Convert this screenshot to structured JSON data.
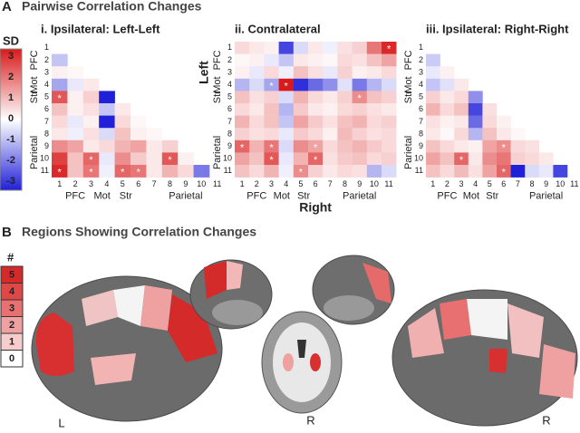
{
  "panel_a": {
    "label": "A",
    "title": "Pairwise Correlation Changes",
    "color_scale": {
      "title": "SD",
      "zlim": [
        -3,
        3
      ],
      "ticks": [
        3,
        2,
        1,
        0,
        -1,
        -2,
        -3
      ],
      "low_color": "#2020d8",
      "mid_color": "#ffffff",
      "high_color": "#d81a1a"
    },
    "tick_labels": [
      "1",
      "2",
      "3",
      "4",
      "5",
      "6",
      "7",
      "8",
      "9",
      "10",
      "11"
    ],
    "group_labels": [
      "PFC",
      "Mot",
      "Str",
      "Parietal"
    ],
    "star": "*",
    "heatmaps": [
      {
        "type": "heatmap",
        "title": "i. Ipsilateral: Left-Left",
        "values": [
          [
            null,
            null,
            null,
            null,
            null,
            null,
            null,
            null,
            null,
            null,
            null
          ],
          [
            -0.8,
            null,
            null,
            null,
            null,
            null,
            null,
            null,
            null,
            null,
            null
          ],
          [
            0.2,
            0.1,
            null,
            null,
            null,
            null,
            null,
            null,
            null,
            null,
            null
          ],
          [
            -1.2,
            -0.3,
            0.3,
            null,
            null,
            null,
            null,
            null,
            null,
            null,
            null
          ],
          [
            2.2,
            0.2,
            0.6,
            -3,
            null,
            null,
            null,
            null,
            null,
            null,
            null
          ],
          [
            0.8,
            0.2,
            0.4,
            -0.8,
            0.3,
            null,
            null,
            null,
            null,
            null,
            null
          ],
          [
            0.5,
            -0.3,
            0.2,
            -3,
            0.5,
            0.1,
            null,
            null,
            null,
            null,
            null
          ],
          [
            0.3,
            -0.2,
            0.4,
            -0.5,
            0.8,
            0.2,
            0.1,
            null,
            null,
            null,
            null
          ],
          [
            1.5,
            1.2,
            0.3,
            0.5,
            1,
            1.2,
            0.3,
            0.6,
            null,
            null,
            null
          ],
          [
            2.5,
            0.8,
            2,
            -0.3,
            1.5,
            0.7,
            0.3,
            2.2,
            0.2,
            null,
            null
          ],
          [
            2.8,
            0.8,
            1.8,
            -0.2,
            2,
            1.8,
            0.3,
            1,
            0.5,
            -1.8,
            null
          ]
        ],
        "stars": [
          [
            5,
            1
          ],
          [
            10,
            3
          ],
          [
            11,
            1
          ],
          [
            11,
            3
          ],
          [
            11,
            5
          ],
          [
            11,
            6
          ],
          [
            10,
            8
          ]
        ]
      },
      {
        "type": "heatmap",
        "title": "ii. Contralateral",
        "y_title": "Left",
        "x_title": "Right",
        "values": [
          [
            0.5,
            0.3,
            0.2,
            -2.5,
            -0.5,
            0.3,
            -0.2,
            0.4,
            0.6,
            1.8,
            2.8
          ],
          [
            0.1,
            0.2,
            -0.3,
            -0.8,
            0.3,
            0.2,
            0.1,
            0.5,
            0.4,
            0.8,
            1.2
          ],
          [
            0.2,
            -0.3,
            0.5,
            -0.2,
            0.8,
            0.4,
            -0.3,
            0.6,
            0.2,
            0.3,
            0.5
          ],
          [
            -1,
            -0.5,
            -1.2,
            3,
            -2.8,
            -2,
            -1.5,
            -0.4,
            -1.8,
            -1,
            -0.5
          ],
          [
            0.8,
            0.4,
            0.6,
            -0.5,
            1,
            0.5,
            0.3,
            0.6,
            1.5,
            0.8,
            0.6
          ],
          [
            0.5,
            0.3,
            0.8,
            -1,
            0.7,
            0.3,
            0.2,
            0.5,
            0.6,
            0.4,
            0.3
          ],
          [
            1,
            0.5,
            0.8,
            -0.8,
            1.2,
            0.7,
            0.4,
            0.8,
            1,
            0.5,
            0.6
          ],
          [
            0.6,
            0.4,
            0.5,
            -0.3,
            0.7,
            0.5,
            0.2,
            0.9,
            0.6,
            0.4,
            0.5
          ],
          [
            2,
            1,
            1.8,
            -0.5,
            1.5,
            1.2,
            0.5,
            0.8,
            1,
            0.7,
            0.5
          ],
          [
            1.2,
            0.8,
            2.2,
            -0.3,
            1,
            2,
            0.4,
            0.7,
            0.8,
            0.5,
            0.6
          ],
          [
            0.8,
            0.5,
            1,
            -0.2,
            1.5,
            0.6,
            0.3,
            0.5,
            0.4,
            -1,
            -0.5
          ]
        ],
        "stars": [
          [
            1,
            11
          ],
          [
            4,
            3
          ],
          [
            4,
            4
          ],
          [
            5,
            9
          ],
          [
            9,
            1
          ],
          [
            9,
            3
          ],
          [
            9,
            6
          ],
          [
            10,
            3
          ],
          [
            10,
            6
          ],
          [
            11,
            5
          ]
        ]
      },
      {
        "type": "heatmap",
        "title": "iii. Ipsilateral: Right-Right",
        "values": [
          [
            null,
            null,
            null,
            null,
            null,
            null,
            null,
            null,
            null,
            null,
            null
          ],
          [
            -0.7,
            null,
            null,
            null,
            null,
            null,
            null,
            null,
            null,
            null,
            null
          ],
          [
            -0.3,
            0.2,
            null,
            null,
            null,
            null,
            null,
            null,
            null,
            null,
            null
          ],
          [
            -0.8,
            -0.4,
            0.3,
            null,
            null,
            null,
            null,
            null,
            null,
            null,
            null
          ],
          [
            0.6,
            0.3,
            0.5,
            -1.5,
            null,
            null,
            null,
            null,
            null,
            null,
            null
          ],
          [
            1,
            0.5,
            0.8,
            -2.5,
            0.4,
            null,
            null,
            null,
            null,
            null,
            null
          ],
          [
            0.4,
            0.2,
            0.3,
            -2,
            0.5,
            0.2,
            null,
            null,
            null,
            null,
            null
          ],
          [
            0.3,
            0.1,
            0.5,
            -1,
            0.8,
            0.3,
            0.1,
            null,
            null,
            null,
            null
          ],
          [
            0.8,
            0.5,
            0.3,
            0.2,
            1.2,
            1.5,
            0.5,
            0.4,
            null,
            null,
            null
          ],
          [
            1.2,
            0.8,
            2,
            0.3,
            1.5,
            1.8,
            0.6,
            0.5,
            0.3,
            null,
            null
          ],
          [
            0.8,
            0.5,
            0.9,
            0.4,
            1.2,
            2,
            -3,
            -0.5,
            -0.3,
            -2.5,
            null
          ]
        ],
        "stars": [
          [
            9,
            6
          ],
          [
            10,
            3
          ],
          [
            11,
            6
          ]
        ]
      }
    ]
  },
  "panel_b": {
    "label": "B",
    "title": "Regions Showing Correlation Changes",
    "legend": {
      "title": "#",
      "levels": [
        5,
        4,
        3,
        2,
        1,
        0
      ],
      "colors": [
        "#d42a2a",
        "#e04848",
        "#e87070",
        "#efa0a0",
        "#f6cccc",
        "#ffffff"
      ]
    },
    "side_labels": [
      "L",
      "R",
      "R"
    ]
  }
}
